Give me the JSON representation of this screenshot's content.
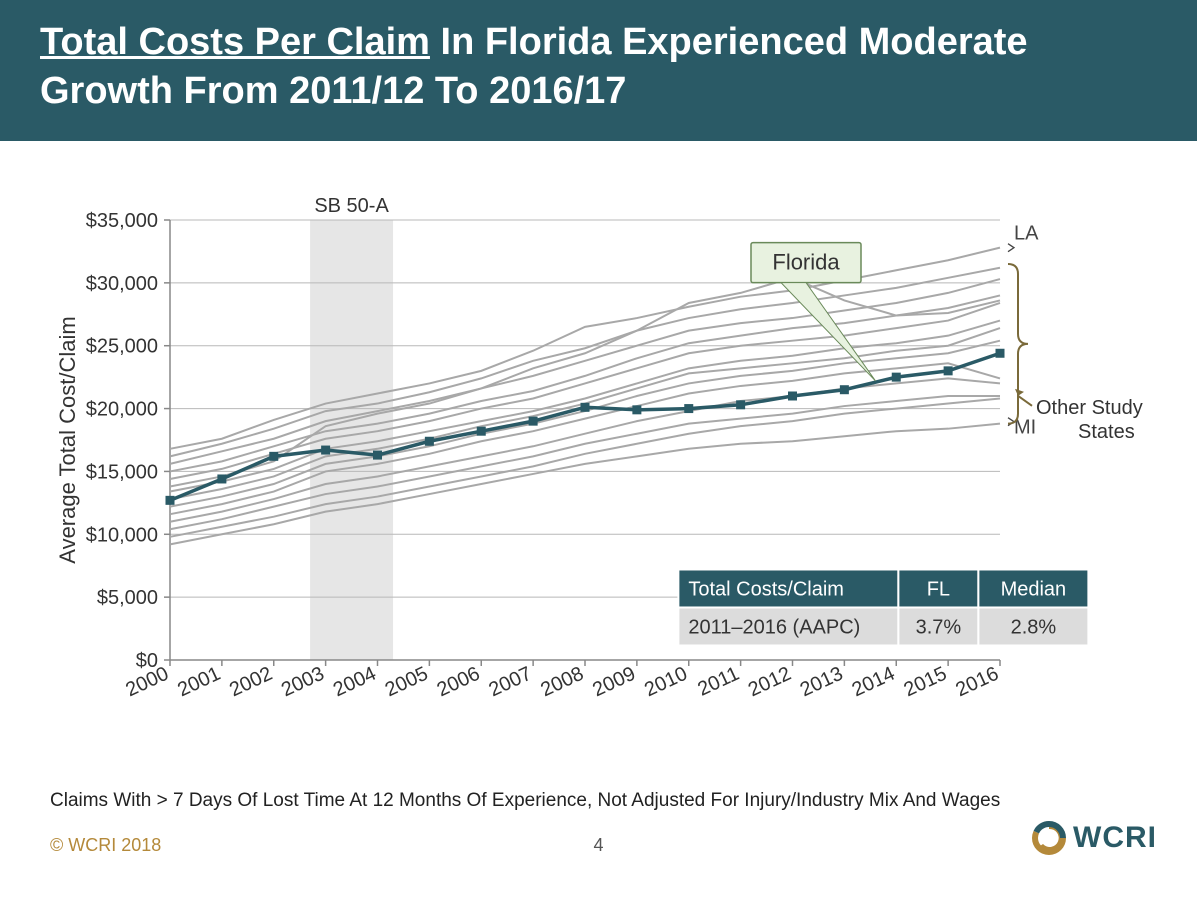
{
  "header": {
    "title_underlined": "Total Costs Per Claim",
    "title_rest": " In Florida Experienced Moderate Growth From 2011/12 To 2016/17",
    "fontsize": 38,
    "bg": "#2a5a66",
    "color": "#ffffff"
  },
  "chart": {
    "type": "line",
    "ylabel": "Average Total Cost/Claim",
    "ylabel_fontsize": 22,
    "xlim": [
      2000,
      2016
    ],
    "ylim": [
      0,
      35000
    ],
    "ytick_step": 5000,
    "ytick_format": "currency",
    "xtick_rotation": -25,
    "background_color": "#ffffff",
    "grid_color": "#b8b8b8",
    "axis_color": "#888888",
    "tick_fontsize": 20,
    "years": [
      2000,
      2001,
      2002,
      2003,
      2004,
      2005,
      2006,
      2007,
      2008,
      2009,
      2010,
      2011,
      2012,
      2013,
      2014,
      2015,
      2016
    ],
    "shaded_band": {
      "label": "SB 50-A",
      "label_fontsize": 20,
      "x_start": 2002.7,
      "x_end": 2004.3,
      "fill": "#e6e6e6"
    },
    "florida": {
      "color": "#2a5a66",
      "line_width": 3.5,
      "marker": "square",
      "marker_size": 9,
      "values": [
        12700,
        14400,
        16200,
        16700,
        16300,
        17400,
        18200,
        19000,
        20100,
        19900,
        20000,
        20300,
        21000,
        21500,
        22500,
        23000,
        24400
      ]
    },
    "other_states": {
      "color": "#a8a8a8",
      "line_width": 2,
      "series": [
        [
          16800,
          17600,
          19100,
          20400,
          21200,
          22000,
          23000,
          24600,
          26500,
          27200,
          28100,
          28900,
          29400,
          30200,
          31000,
          31800,
          32800
        ],
        [
          16200,
          17200,
          18400,
          19800,
          20400,
          21300,
          22400,
          23800,
          24800,
          26200,
          27200,
          27900,
          28400,
          29000,
          29600,
          30400,
          31200
        ],
        [
          15600,
          16600,
          17600,
          19000,
          19800,
          20600,
          21600,
          22600,
          23800,
          25000,
          26200,
          26800,
          27200,
          27800,
          28400,
          29200,
          30300
        ],
        [
          15000,
          15800,
          17000,
          18200,
          18800,
          19600,
          20600,
          21400,
          22600,
          24000,
          25200,
          25800,
          26400,
          26800,
          27400,
          28000,
          29000
        ],
        [
          14400,
          15200,
          16400,
          17600,
          18200,
          19000,
          20000,
          20800,
          22000,
          23200,
          24400,
          25000,
          25400,
          25800,
          26400,
          27000,
          28400
        ],
        [
          13800,
          14600,
          15800,
          18600,
          19600,
          20400,
          21600,
          23200,
          24400,
          26200,
          28400,
          29200,
          30400,
          28600,
          27400,
          27600,
          28600
        ],
        [
          13400,
          14200,
          15200,
          16800,
          17400,
          18200,
          19000,
          19800,
          20800,
          22000,
          23200,
          23800,
          24200,
          24800,
          25200,
          25800,
          27000
        ],
        [
          12800,
          13600,
          14600,
          16200,
          16800,
          17600,
          18600,
          19400,
          20400,
          21600,
          22800,
          23200,
          23600,
          24000,
          24600,
          25000,
          26400
        ],
        [
          12200,
          13000,
          14000,
          15600,
          16200,
          17000,
          18000,
          18800,
          19800,
          21000,
          22000,
          22600,
          23000,
          23600,
          24000,
          24400,
          25400
        ],
        [
          11600,
          12400,
          13400,
          15000,
          15600,
          16400,
          17400,
          18200,
          19200,
          20200,
          21200,
          21800,
          22200,
          22800,
          23200,
          23600,
          22400
        ],
        [
          11000,
          11800,
          12800,
          14000,
          14600,
          15400,
          16200,
          17000,
          18000,
          19000,
          19800,
          20600,
          21000,
          21600,
          22000,
          22400,
          22000
        ],
        [
          10400,
          11200,
          12200,
          13200,
          13800,
          14600,
          15400,
          16200,
          17200,
          18000,
          18800,
          19200,
          19600,
          20200,
          20600,
          21000,
          21000
        ],
        [
          9800,
          10600,
          11400,
          12400,
          13000,
          13800,
          14600,
          15400,
          16400,
          17200,
          18000,
          18600,
          19000,
          19600,
          20000,
          20400,
          20800
        ],
        [
          9200,
          10000,
          10800,
          11800,
          12400,
          13200,
          14000,
          14800,
          15600,
          16200,
          16800,
          17200,
          17400,
          17800,
          18200,
          18400,
          18800
        ]
      ]
    },
    "callout": {
      "label": "Florida",
      "bg": "#e8f2e0",
      "border": "#6a8a5a",
      "fontsize": 22
    },
    "end_labels": {
      "top": "LA",
      "bottom": "MI",
      "bracket_label": "Other Study States",
      "fontsize": 20,
      "color": "#444444",
      "bracket_color": "#7a6a3a"
    }
  },
  "table": {
    "header_bg": "#2a5a66",
    "header_color": "#ffffff",
    "body_bg": "#dcdcdc",
    "body_color": "#333333",
    "border": "#ffffff",
    "fontsize": 20,
    "columns": [
      "Total Costs/Claim",
      "FL",
      "Median"
    ],
    "rows": [
      [
        "2011–2016 (AAPC)",
        "3.7%",
        "2.8%"
      ]
    ]
  },
  "footnote": {
    "text": "Claims With > 7 Days Of Lost Time At 12 Months Of Experience, Not Adjusted For Injury/Industry Mix And Wages",
    "fontsize": 19
  },
  "footer": {
    "copyright": "© WCRI 2018",
    "copyright_color": "#b4893a",
    "pagenum": "4",
    "logo_text": "WCRI",
    "logo_fontsize": 30,
    "logo_color": "#2a5a66",
    "logo_ring_outer": "#b4893a",
    "logo_ring_inner": "#2a5a66"
  }
}
